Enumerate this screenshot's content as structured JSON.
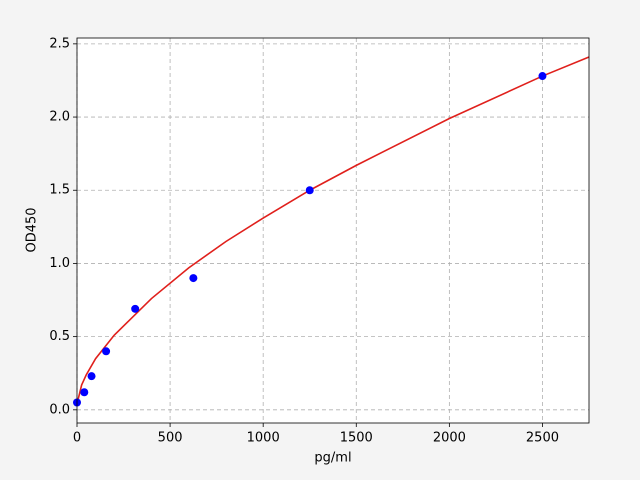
{
  "chart_data": {
    "type": "scatter",
    "x_label": "pg/ml",
    "y_label": "OD450",
    "xlim": [
      0,
      2750
    ],
    "ylim": [
      -0.09,
      2.54
    ],
    "xticks": [
      0,
      500,
      1000,
      1500,
      2000,
      2500
    ],
    "yticks": [
      {
        "value": 0,
        "label": "0.0"
      },
      {
        "value": 0.5,
        "label": "0.5"
      },
      {
        "value": 1,
        "label": "1.0"
      },
      {
        "value": 1.5,
        "label": "1.5"
      },
      {
        "value": 2,
        "label": "2.0"
      },
      {
        "value": 2.5,
        "label": "2.5"
      }
    ],
    "grid": true,
    "series": [
      {
        "type": "line",
        "color": "#e0201c",
        "x": [
          0,
          25,
          50,
          100,
          200,
          400,
          600,
          800,
          1000,
          1250,
          1500,
          2000,
          2500,
          2750
        ],
        "values": [
          0.04,
          0.17,
          0.24,
          0.35,
          0.51,
          0.76,
          0.97,
          1.15,
          1.31,
          1.5,
          1.67,
          1.99,
          2.28,
          2.41
        ]
      },
      {
        "type": "scatter",
        "color": "#0000ff",
        "x": [
          0,
          39.06,
          78.13,
          156.25,
          312.5,
          625,
          1250,
          2500
        ],
        "values": [
          0.05,
          0.12,
          0.23,
          0.4,
          0.69,
          0.9,
          1.5,
          2.28
        ]
      }
    ]
  }
}
